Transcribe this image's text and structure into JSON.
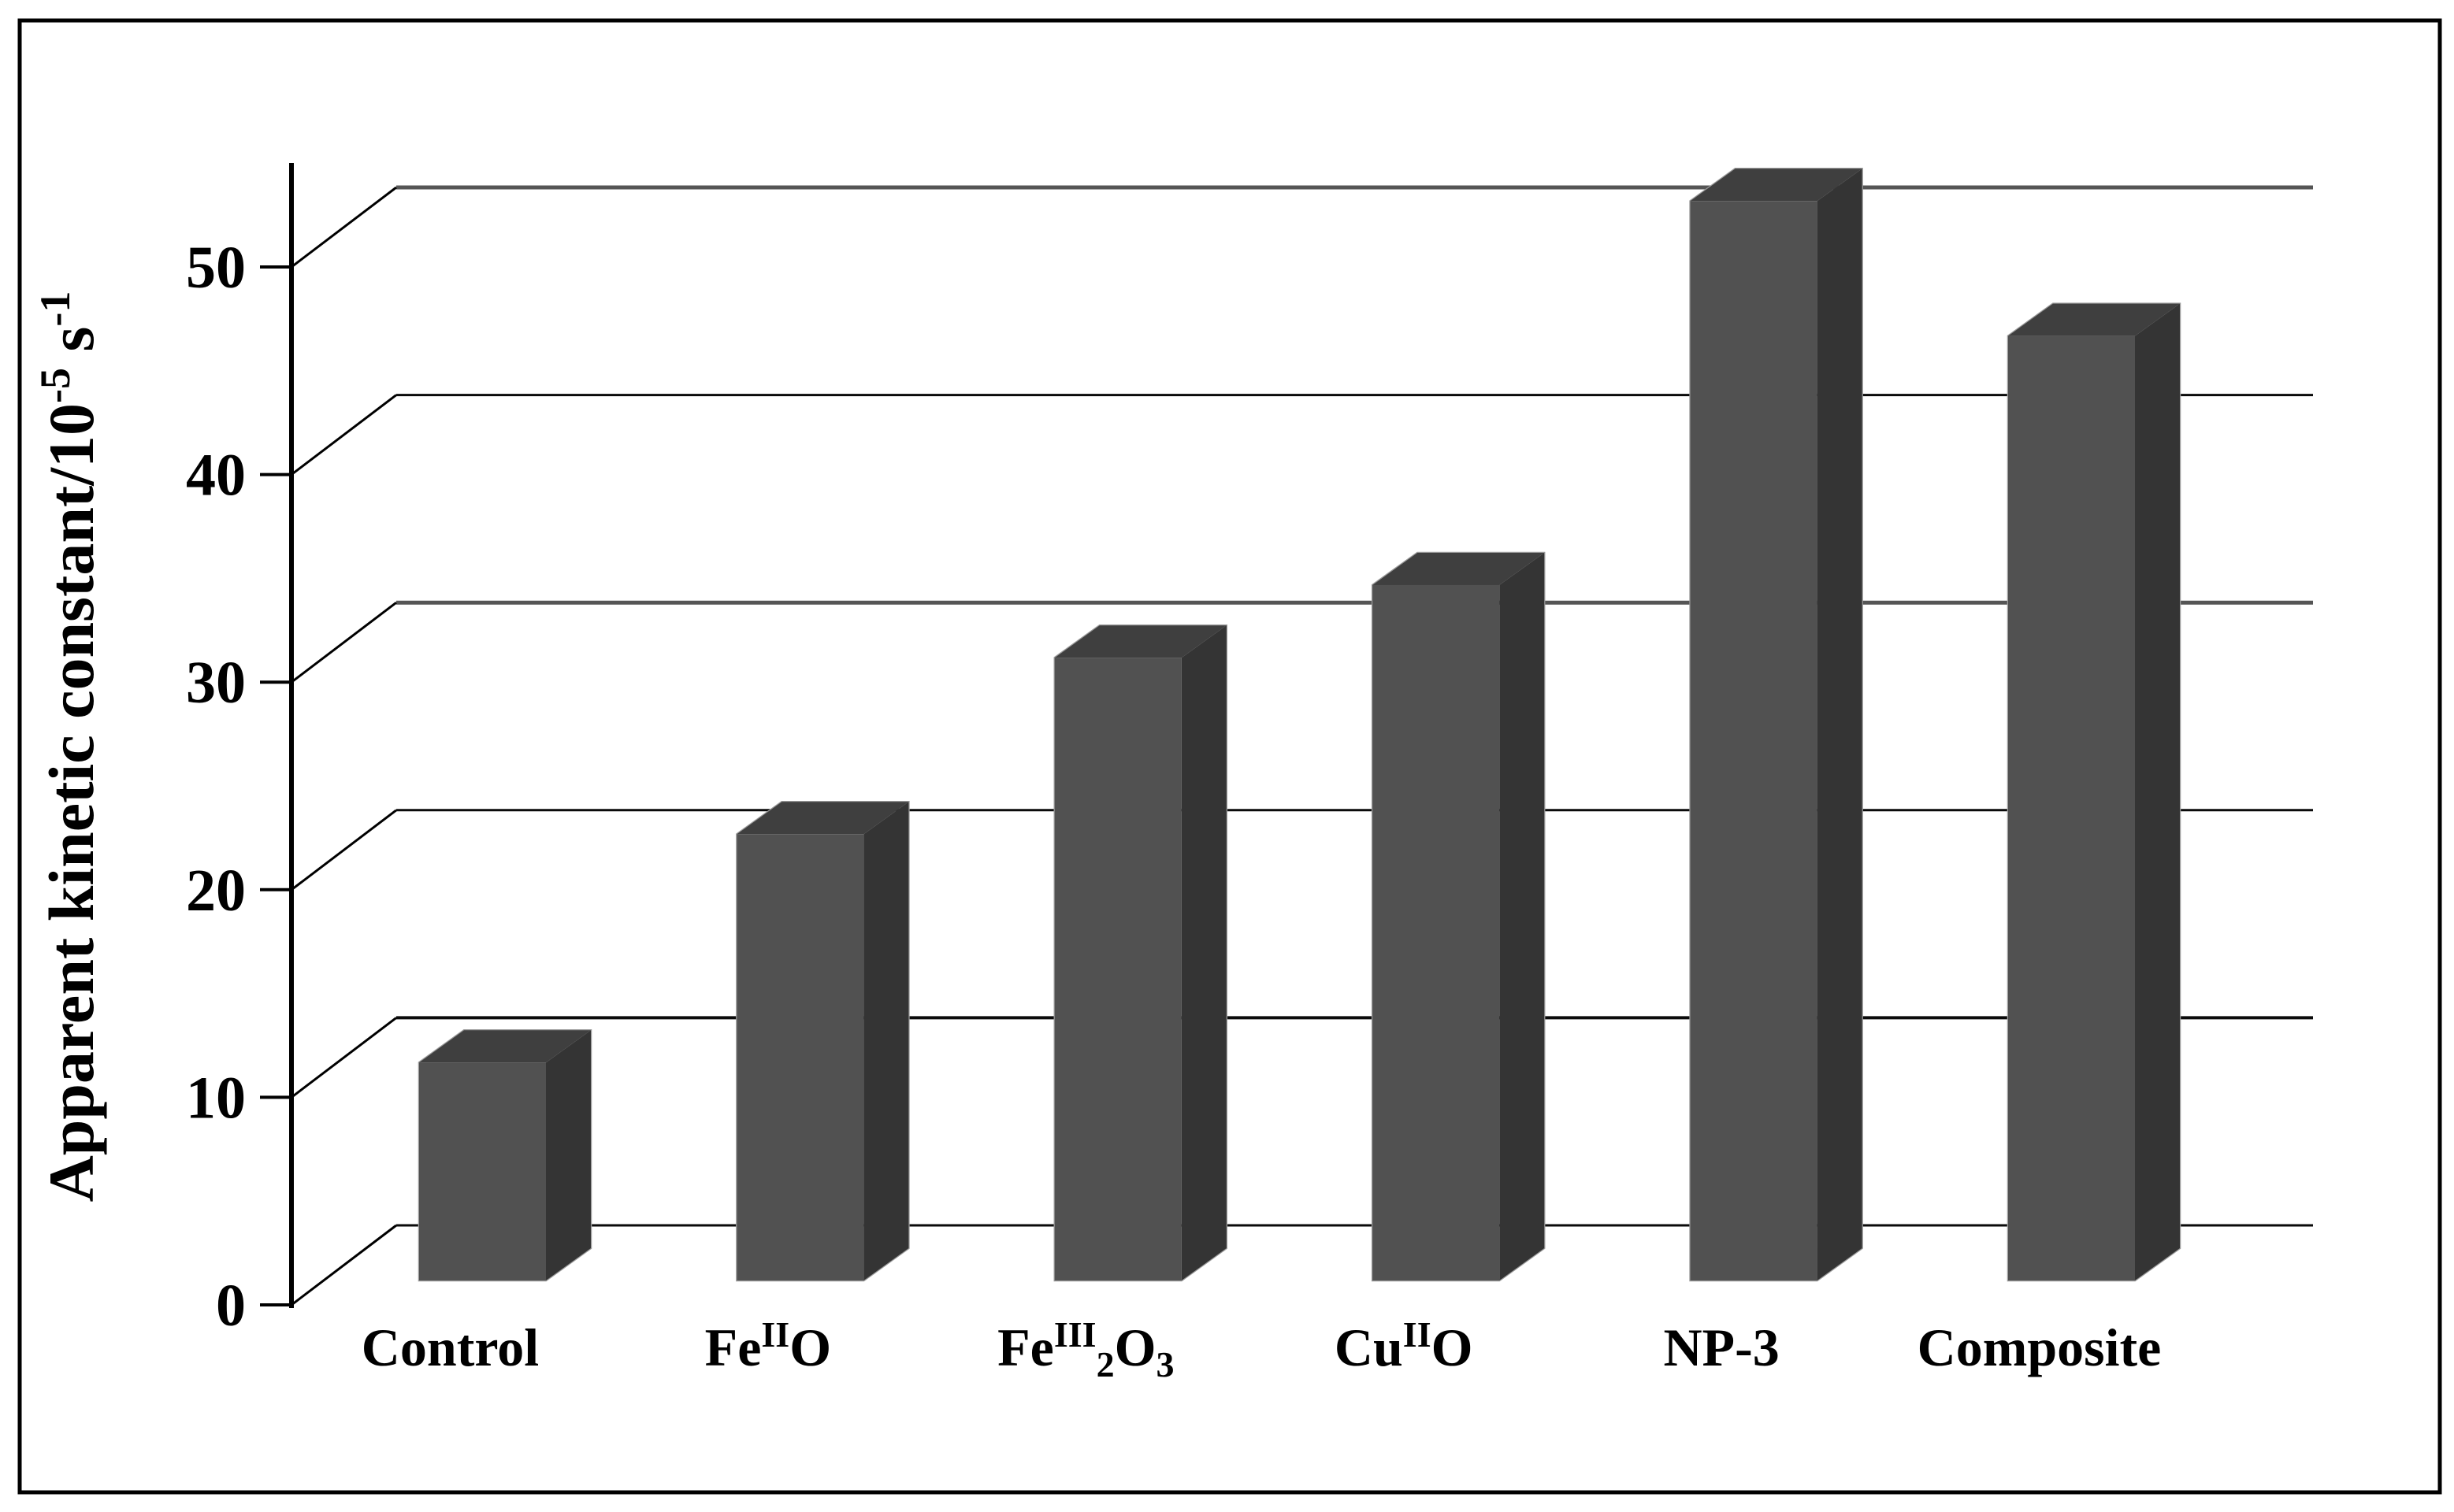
{
  "figure": {
    "kind": "3d-column-chart",
    "background": "#ffffff",
    "border_color": "#000000"
  },
  "chart_data": {
    "type": "bar",
    "subtype": "3d-column",
    "title": "",
    "xlabel": "",
    "ylabel": "Apparent kinetic constant/10-5 s-1",
    "ylabel_rich": [
      {
        "t": "Apparent kinetic constant/10"
      },
      {
        "t": "-5",
        "sup": true
      },
      {
        "t": " s"
      },
      {
        "t": "-1",
        "sup": true
      }
    ],
    "categories": [
      "Control",
      "FeIIO",
      "FeIII2O3",
      "CuIIO",
      "NP-3",
      "Composite"
    ],
    "categories_rich": [
      [
        {
          "t": "Control"
        }
      ],
      [
        {
          "t": "Fe"
        },
        {
          "t": "II",
          "sup": true
        },
        {
          "t": "O"
        }
      ],
      [
        {
          "t": "Fe"
        },
        {
          "t": "III",
          "sup": true
        },
        {
          "t": "2",
          "sub": true
        },
        {
          "t": "O"
        },
        {
          "t": "3",
          "sub": true
        }
      ],
      [
        {
          "t": "Cu"
        },
        {
          "t": "II",
          "sup": true
        },
        {
          "t": "O"
        }
      ],
      [
        {
          "t": "NP-3"
        }
      ],
      [
        {
          "t": "Composite"
        }
      ]
    ],
    "values": [
      10.5,
      21.5,
      30,
      33.5,
      52,
      45.5
    ],
    "yticks": [
      0,
      10,
      20,
      30,
      40,
      50
    ],
    "ytick_labels": [
      "0",
      "10",
      "20",
      "30",
      "40",
      "50"
    ],
    "ylim": [
      0,
      55
    ],
    "grid": true,
    "legend": false,
    "colors": {
      "bar_front": "#515151",
      "bar_top": "#3f3f3f",
      "bar_side": "#343434",
      "bar_outline": "#9a9a9a",
      "gridline_major": "#0a0a0a",
      "gridline_gray": "#555555",
      "axis": "#000000",
      "text": "#000000"
    }
  }
}
